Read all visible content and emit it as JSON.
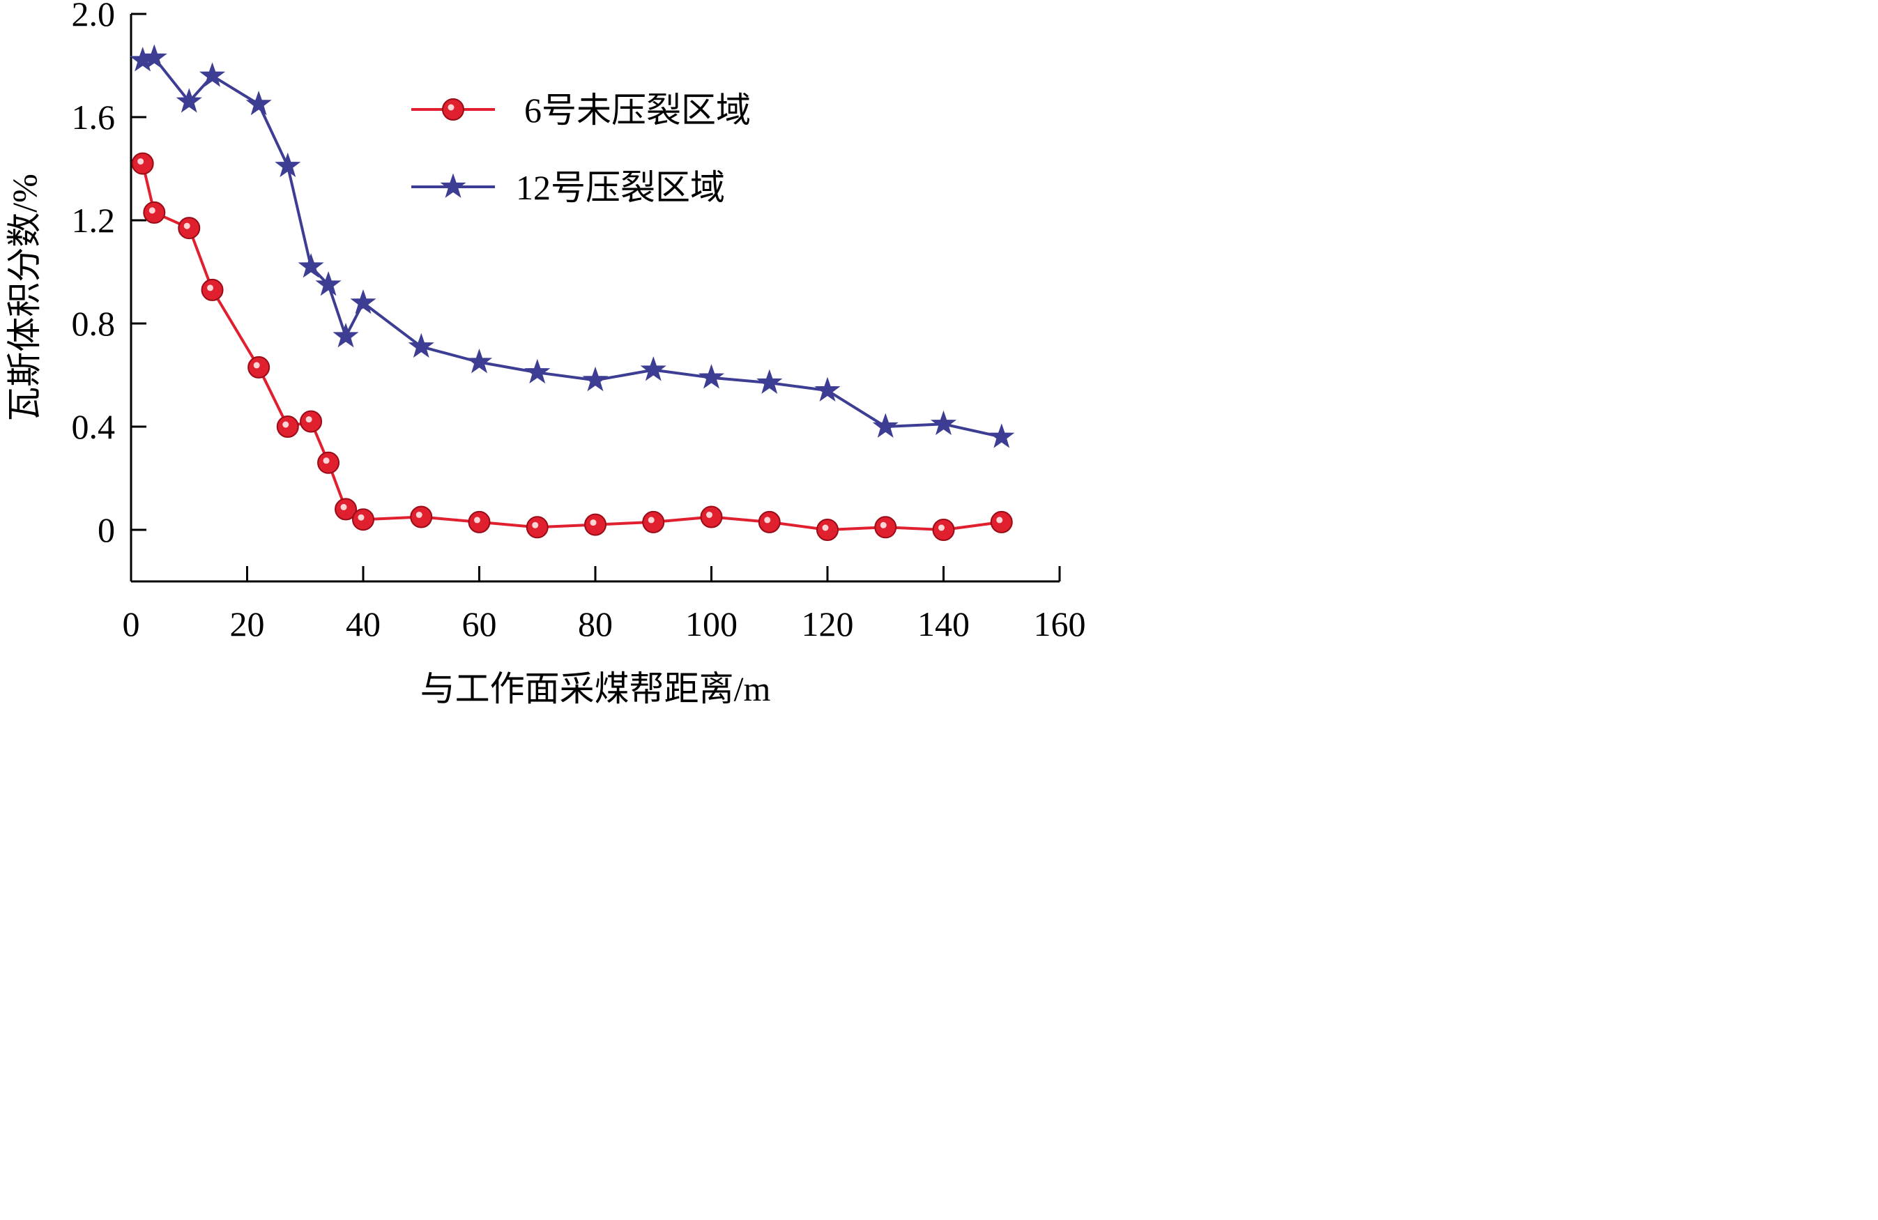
{
  "chart_data": {
    "type": "line",
    "xlabel": "与工作面采煤帮距离/m",
    "ylabel": "瓦斯体积分数/%",
    "xlim": [
      0,
      160
    ],
    "ylim": [
      -0.2,
      2.0
    ],
    "xticks": [
      0,
      20,
      40,
      60,
      80,
      100,
      120,
      140,
      160
    ],
    "xtick_labels": [
      "0",
      "20",
      "40",
      "60",
      "80",
      "100",
      "120",
      "140",
      "160"
    ],
    "yticks": [
      0,
      0.4,
      0.8,
      1.2,
      1.6,
      2.0
    ],
    "ytick_labels": [
      "0",
      "0.4",
      "0.8",
      "1.2",
      "1.6",
      "2.0"
    ],
    "grid": false,
    "legend_position": "top-right",
    "series": [
      {
        "name": "6号未压裂区域",
        "color": "#e0202e",
        "marker": "circle",
        "x": [
          2,
          4,
          10,
          14,
          22,
          27,
          31,
          34,
          37,
          40,
          50,
          60,
          70,
          80,
          90,
          100,
          110,
          120,
          130,
          140,
          150
        ],
        "y": [
          1.42,
          1.23,
          1.17,
          0.93,
          0.63,
          0.4,
          0.42,
          0.26,
          0.08,
          0.04,
          0.05,
          0.03,
          0.01,
          0.02,
          0.03,
          0.05,
          0.03,
          0.0,
          0.01,
          0.0,
          0.03
        ]
      },
      {
        "name": "12号压裂区域",
        "color": "#3d3d93",
        "marker": "star",
        "x": [
          2,
          4,
          10,
          14,
          22,
          27,
          31,
          34,
          37,
          40,
          50,
          60,
          70,
          80,
          90,
          100,
          110,
          120,
          130,
          140,
          150
        ],
        "y": [
          1.82,
          1.83,
          1.66,
          1.76,
          1.65,
          1.41,
          1.02,
          0.95,
          0.75,
          0.88,
          0.71,
          0.65,
          0.61,
          0.58,
          0.62,
          0.59,
          0.57,
          0.54,
          0.4,
          0.41,
          0.36
        ]
      }
    ]
  }
}
